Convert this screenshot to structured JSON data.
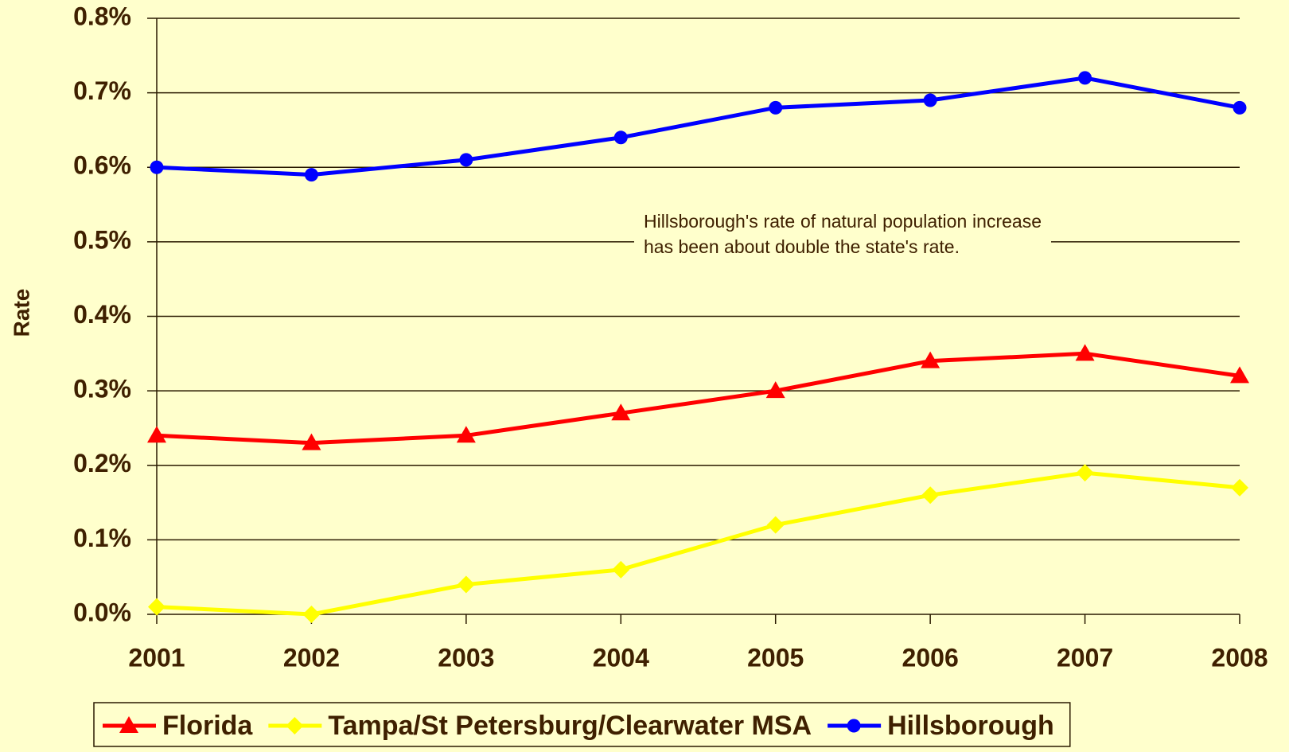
{
  "chart_data": {
    "type": "line",
    "y_label": "Rate",
    "annotation": "Hillsborough's rate of natural population increase has been about double the state's rate.",
    "categories": [
      "2001",
      "2002",
      "2003",
      "2004",
      "2005",
      "2006",
      "2007",
      "2008"
    ],
    "series": [
      {
        "name": "Florida",
        "color": "#ff0000",
        "marker": "triangle",
        "values": [
          0.24,
          0.23,
          0.24,
          0.27,
          0.3,
          0.34,
          0.35,
          0.32
        ]
      },
      {
        "name": "Tampa/St Petersburg/Clearwater MSA",
        "color": "#ffff00",
        "marker": "diamond",
        "values": [
          0.01,
          0.0,
          0.04,
          0.06,
          0.12,
          0.16,
          0.19,
          0.17
        ]
      },
      {
        "name": "Hillsborough",
        "color": "#0000ff",
        "marker": "circle",
        "values": [
          0.6,
          0.59,
          0.61,
          0.64,
          0.68,
          0.69,
          0.72,
          0.68
        ]
      }
    ],
    "ylim": [
      0,
      0.8
    ],
    "yticks": [
      {
        "value": 0,
        "label": "0.0%"
      },
      {
        "value": 0.1,
        "label": "0.1%"
      },
      {
        "value": 0.2,
        "label": "0.2%"
      },
      {
        "value": 0.3,
        "label": "0.3%"
      },
      {
        "value": 0.4,
        "label": "0.4%"
      },
      {
        "value": 0.5,
        "label": "0.5%"
      },
      {
        "value": 0.6,
        "label": "0.6%"
      },
      {
        "value": 0.7,
        "label": "0.7%"
      },
      {
        "value": 0.8,
        "label": "0.8%"
      }
    ],
    "grid": true
  }
}
